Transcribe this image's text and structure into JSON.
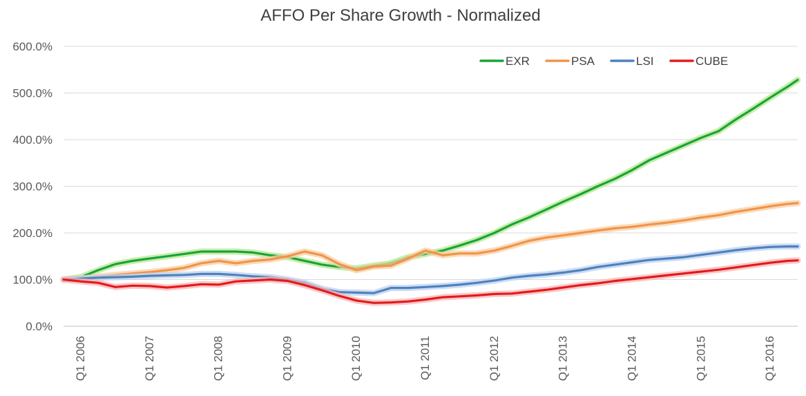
{
  "chart_data": {
    "type": "line",
    "title": "AFFO Per Share Growth - Normalized",
    "xlabel": "",
    "ylabel": "",
    "ylim": [
      0,
      600
    ],
    "yticks": [
      0,
      100,
      200,
      300,
      400,
      500,
      600
    ],
    "ytick_labels": [
      "0.0%",
      "100.0%",
      "200.0%",
      "300.0%",
      "400.0%",
      "500.0%",
      "600.0%"
    ],
    "x_range": [
      2006,
      2016.65
    ],
    "xticks": [
      2006,
      2007,
      2008,
      2009,
      2010,
      2011,
      2012,
      2013,
      2014,
      2015,
      2016
    ],
    "xtick_labels": [
      "Q1 2006",
      "Q1 2007",
      "Q1 2008",
      "Q1 2009",
      "Q1 2010",
      "Q1 2011",
      "Q1 2012",
      "Q1 2013",
      "Q1 2014",
      "Q1 2015",
      "Q1 2016"
    ],
    "grid": true,
    "legend_position": "top-right",
    "series": [
      {
        "name": "EXR",
        "color": "#1aa33a",
        "glow": "#b6e88f",
        "x": [
          2006,
          2006.25,
          2006.5,
          2006.75,
          2007,
          2007.25,
          2007.5,
          2007.75,
          2008,
          2008.25,
          2008.5,
          2008.75,
          2009,
          2009.25,
          2009.5,
          2009.75,
          2010,
          2010.25,
          2010.5,
          2010.75,
          2011,
          2011.25,
          2011.5,
          2011.75,
          2012,
          2012.25,
          2012.5,
          2012.75,
          2013,
          2013.25,
          2013.5,
          2013.75,
          2014,
          2014.25,
          2014.5,
          2014.75,
          2015,
          2015.25,
          2015.5,
          2015.75,
          2016,
          2016.25,
          2016.5,
          2016.65
        ],
        "values": [
          100,
          105,
          120,
          133,
          140,
          145,
          150,
          155,
          160,
          160,
          160,
          158,
          152,
          148,
          140,
          132,
          127,
          124,
          130,
          135,
          148,
          155,
          162,
          173,
          185,
          200,
          218,
          233,
          250,
          267,
          283,
          300,
          316,
          335,
          356,
          372,
          388,
          404,
          418,
          443,
          466,
          490,
          513,
          528
        ]
      },
      {
        "name": "PSA",
        "color": "#f0944a",
        "glow": "#f8cfa3",
        "x": [
          2006,
          2006.25,
          2006.5,
          2006.75,
          2007,
          2007.25,
          2007.5,
          2007.75,
          2008,
          2008.25,
          2008.5,
          2008.75,
          2009,
          2009.25,
          2009.5,
          2009.75,
          2010,
          2010.25,
          2010.5,
          2010.75,
          2011,
          2011.25,
          2011.5,
          2011.75,
          2012,
          2012.25,
          2012.5,
          2012.75,
          2013,
          2013.25,
          2013.5,
          2013.75,
          2014,
          2014.25,
          2014.5,
          2014.75,
          2015,
          2015.25,
          2015.5,
          2015.75,
          2016,
          2016.25,
          2016.5,
          2016.65
        ],
        "values": [
          100,
          102,
          106,
          110,
          113,
          116,
          120,
          125,
          135,
          140,
          135,
          140,
          143,
          150,
          160,
          152,
          133,
          120,
          128,
          130,
          145,
          162,
          152,
          156,
          156,
          162,
          172,
          183,
          190,
          195,
          200,
          205,
          210,
          213,
          218,
          222,
          227,
          233,
          238,
          245,
          251,
          257,
          262,
          264
        ]
      },
      {
        "name": "LSI",
        "color": "#4f81bd",
        "glow": "#bcd2f0",
        "x": [
          2006,
          2006.25,
          2006.5,
          2006.75,
          2007,
          2007.25,
          2007.5,
          2007.75,
          2008,
          2008.25,
          2008.5,
          2008.75,
          2009,
          2009.25,
          2009.5,
          2009.75,
          2010,
          2010.25,
          2010.5,
          2010.75,
          2011,
          2011.25,
          2011.5,
          2011.75,
          2012,
          2012.25,
          2012.5,
          2012.75,
          2013,
          2013.25,
          2013.5,
          2013.75,
          2014,
          2014.25,
          2014.5,
          2014.75,
          2015,
          2015.25,
          2015.5,
          2015.75,
          2016,
          2016.25,
          2016.5,
          2016.65
        ],
        "values": [
          100,
          102,
          104,
          105,
          106,
          108,
          109,
          110,
          112,
          112,
          110,
          107,
          105,
          100,
          93,
          80,
          73,
          72,
          71,
          82,
          82,
          84,
          86,
          89,
          93,
          98,
          104,
          108,
          111,
          115,
          120,
          127,
          132,
          137,
          142,
          145,
          148,
          153,
          158,
          163,
          167,
          170,
          171,
          171
        ]
      },
      {
        "name": "CUBE",
        "color": "#e31a1c",
        "glow": "#f7b4b4",
        "x": [
          2006,
          2006.25,
          2006.5,
          2006.75,
          2007,
          2007.25,
          2007.5,
          2007.75,
          2008,
          2008.25,
          2008.5,
          2008.75,
          2009,
          2009.25,
          2009.5,
          2009.75,
          2010,
          2010.25,
          2010.5,
          2010.75,
          2011,
          2011.25,
          2011.5,
          2011.75,
          2012,
          2012.25,
          2012.5,
          2012.75,
          2013,
          2013.25,
          2013.5,
          2013.75,
          2014,
          2014.25,
          2014.5,
          2014.75,
          2015,
          2015.25,
          2015.5,
          2015.75,
          2016,
          2016.25,
          2016.5,
          2016.65
        ],
        "values": [
          100,
          96,
          93,
          84,
          87,
          86,
          83,
          86,
          90,
          89,
          96,
          98,
          100,
          97,
          88,
          77,
          65,
          55,
          50,
          51,
          53,
          57,
          62,
          64,
          66,
          69,
          70,
          74,
          78,
          83,
          88,
          92,
          97,
          101,
          105,
          109,
          113,
          117,
          121,
          126,
          131,
          136,
          140,
          141
        ]
      }
    ]
  }
}
